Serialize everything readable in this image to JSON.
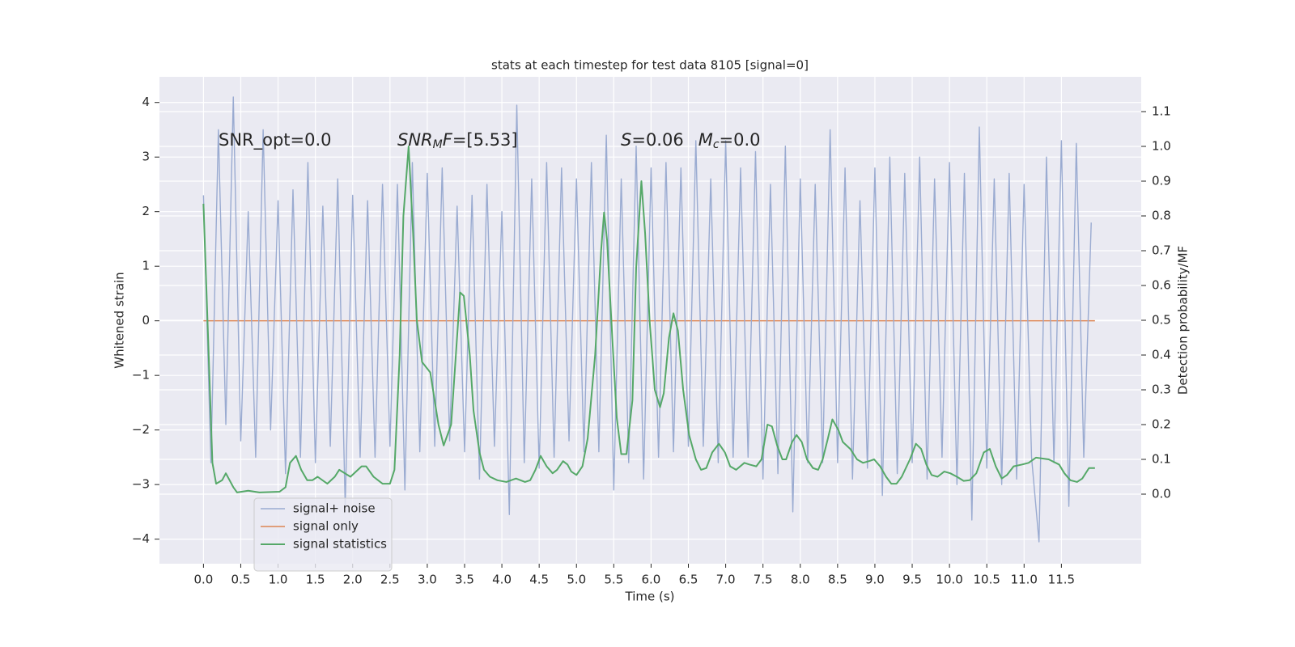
{
  "chart_data": {
    "type": "line",
    "title": "stats at each timestep for test data 8105 [signal=0]",
    "xlabel": "Time (s)",
    "ylabel": "Whitened strain",
    "y2label": "Detection probability/MF",
    "xlim": [
      -0.59,
      12.57
    ],
    "ylim": [
      -4.45,
      4.47
    ],
    "y2lim": [
      -0.2,
      1.2
    ],
    "xticks": [
      {
        "value": 0,
        "label": "0.0"
      },
      0.5,
      {
        "value": 1,
        "label": "1.0"
      },
      1.5,
      {
        "value": 2,
        "label": "2.0"
      },
      2.5,
      {
        "value": 3,
        "label": "3.0"
      },
      3.5,
      {
        "value": 4,
        "label": "4.0"
      },
      4.5,
      {
        "value": 5,
        "label": "5.0"
      },
      5.5,
      {
        "value": 6,
        "label": "6.0"
      },
      6.5,
      {
        "value": 7,
        "label": "7.0"
      },
      7.5,
      {
        "value": 8,
        "label": "8.0"
      },
      8.5,
      {
        "value": 9,
        "label": "9.0"
      },
      9.5,
      {
        "value": 10,
        "label": "10.0"
      },
      10.5,
      {
        "value": 11,
        "label": "11.0"
      },
      11.5
    ],
    "yticks": [
      {
        "value": -4,
        "label": "−4"
      },
      {
        "value": -3,
        "label": "−3"
      },
      {
        "value": -2,
        "label": "−2"
      },
      {
        "value": -1,
        "label": "−1"
      },
      0,
      1,
      2,
      3,
      4
    ],
    "y2ticks": [
      {
        "value": 0,
        "label": "0.0"
      },
      0.1,
      0.2,
      0.3,
      0.4,
      0.5,
      0.6,
      0.7,
      0.8,
      0.9,
      {
        "value": 1,
        "label": "1.0"
      },
      1.1
    ],
    "grid": true,
    "legend_loc": "lower left",
    "annotations": [
      [
        "SNR_opt=0.0"
      ],
      [
        "SNR",
        "M",
        "F",
        "=[5.53]"
      ],
      [
        "S",
        "=0.06",
        "M",
        "c",
        "=0.0"
      ]
    ],
    "series": [
      {
        "name": "signal+ noise",
        "color": "#9aabd1",
        "x": [
          0,
          0.1,
          0.2,
          0.3,
          0.4,
          0.5,
          0.6,
          0.7,
          0.8,
          0.9,
          1,
          1.1,
          1.2,
          1.3,
          1.4,
          1.5,
          1.6,
          1.7,
          1.8,
          1.9,
          2,
          2.1,
          2.2,
          2.3,
          2.4,
          2.5,
          2.6,
          2.7,
          2.8,
          2.9,
          3,
          3.1,
          3.2,
          3.3,
          3.4,
          3.5,
          3.6,
          3.7,
          3.8,
          3.9,
          4,
          4.1,
          4.2,
          4.3,
          4.4,
          4.5,
          4.6,
          4.7,
          4.8,
          4.9,
          5,
          5.1,
          5.2,
          5.3,
          5.4,
          5.5,
          5.6,
          5.7,
          5.8,
          5.9,
          6,
          6.1,
          6.2,
          6.3,
          6.4,
          6.5,
          6.6,
          6.7,
          6.8,
          6.9,
          7,
          7.1,
          7.2,
          7.3,
          7.4,
          7.5,
          7.6,
          7.7,
          7.8,
          7.9,
          8,
          8.1,
          8.2,
          8.3,
          8.4,
          8.5,
          8.6,
          8.7,
          8.8,
          8.9,
          9,
          9.1,
          9.2,
          9.3,
          9.4,
          9.5,
          9.6,
          9.7,
          9.8,
          9.9,
          10,
          10.1,
          10.2,
          10.3,
          10.4,
          10.5,
          10.6,
          10.7,
          10.8,
          10.9,
          11,
          11.1,
          11.2,
          11.3,
          11.4,
          11.5,
          11.6,
          11.7,
          11.8,
          11.9
        ],
        "values": [
          2.3,
          -2.6,
          3.5,
          -1.9,
          4.1,
          -2.2,
          2.0,
          -2.5,
          3.5,
          -2.0,
          2.2,
          -2.8,
          2.4,
          -2.5,
          2.9,
          -2.6,
          2.1,
          -2.3,
          2.6,
          -3.4,
          2.3,
          -2.5,
          2.2,
          -2.5,
          2.5,
          -2.3,
          2.5,
          -3.1,
          2.9,
          -2.4,
          2.7,
          -2.3,
          2.8,
          -2.2,
          2.1,
          -2.4,
          2.3,
          -2.9,
          2.5,
          -2.3,
          2.0,
          -3.55,
          3.95,
          -2.6,
          2.6,
          -2.7,
          2.9,
          -2.5,
          2.8,
          -2.2,
          2.6,
          -2.4,
          2.9,
          -2.4,
          3.4,
          -3.1,
          2.6,
          -2.6,
          3.2,
          -2.9,
          2.8,
          -2.5,
          2.9,
          -2.4,
          2.8,
          -2.3,
          3.3,
          -2.3,
          2.6,
          -2.6,
          3.3,
          -2.5,
          2.8,
          -2.5,
          3.1,
          -2.9,
          2.5,
          -2.8,
          3.2,
          -3.5,
          2.6,
          -2.6,
          2.5,
          -2.6,
          3.5,
          -2.6,
          2.8,
          -2.9,
          2.2,
          -2.7,
          2.8,
          -3.2,
          3.0,
          -2.8,
          2.7,
          -2.6,
          3.0,
          -2.9,
          2.6,
          -2.5,
          2.9,
          -3.0,
          2.7,
          -3.65,
          3.55,
          -2.7,
          2.6,
          -3.0,
          2.7,
          -2.9,
          2.5,
          -2.5,
          -4.05,
          3.0,
          -2.6,
          3.3,
          -3.4,
          3.25,
          -2.5,
          1.8
        ]
      },
      {
        "name": "signal only",
        "color": "#dd8452",
        "x": [
          0,
          11.95
        ],
        "values": [
          0,
          0
        ]
      },
      {
        "name": "signal statistics",
        "color": "#55a868",
        "axis": "y2",
        "x": [
          0,
          0.12,
          0.17,
          0.25,
          0.3,
          0.4,
          0.45,
          0.6,
          0.75,
          1.02,
          1.1,
          1.16,
          1.24,
          1.31,
          1.39,
          1.46,
          1.53,
          1.66,
          1.76,
          1.82,
          1.97,
          2.12,
          2.18,
          2.28,
          2.4,
          2.5,
          2.56,
          2.63,
          2.68,
          2.75,
          2.81,
          2.86,
          2.93,
          3.04,
          3.15,
          3.22,
          3.32,
          3.44,
          3.49,
          3.57,
          3.62,
          3.7,
          3.76,
          3.84,
          3.94,
          4.06,
          4.19,
          4.31,
          4.38,
          4.45,
          4.52,
          4.6,
          4.68,
          4.74,
          4.82,
          4.88,
          4.93,
          5.0,
          5.08,
          5.15,
          5.25,
          5.33,
          5.37,
          5.41,
          5.48,
          5.54,
          5.6,
          5.67,
          5.75,
          5.8,
          5.87,
          5.92,
          5.98,
          6.05,
          6.12,
          6.17,
          6.24,
          6.3,
          6.36,
          6.43,
          6.51,
          6.6,
          6.67,
          6.74,
          6.82,
          6.91,
          6.99,
          7.06,
          7.14,
          7.25,
          7.32,
          7.41,
          7.48,
          7.56,
          7.62,
          7.69,
          7.76,
          7.81,
          7.89,
          7.95,
          8.02,
          8.09,
          8.17,
          8.24,
          8.3,
          8.37,
          8.43,
          8.51,
          8.57,
          8.67,
          8.76,
          8.84,
          8.92,
          8.99,
          9.07,
          9.15,
          9.22,
          9.29,
          9.36,
          9.47,
          9.55,
          9.62,
          9.69,
          9.76,
          9.84,
          9.93,
          10.01,
          10.1,
          10.19,
          10.27,
          10.36,
          10.46,
          10.54,
          10.62,
          10.7,
          10.77,
          10.86,
          10.97,
          11.06,
          11.16,
          11.33,
          11.47,
          11.54,
          11.62,
          11.71,
          11.78,
          11.87,
          11.95
        ],
        "values": [
          0.835,
          0.09,
          0.03,
          0.04,
          0.06,
          0.02,
          0.005,
          0.01,
          0.005,
          0.007,
          0.02,
          0.09,
          0.11,
          0.07,
          0.04,
          0.04,
          0.05,
          0.03,
          0.05,
          0.07,
          0.05,
          0.08,
          0.08,
          0.05,
          0.03,
          0.03,
          0.07,
          0.4,
          0.8,
          1.0,
          0.75,
          0.5,
          0.38,
          0.35,
          0.2,
          0.14,
          0.2,
          0.58,
          0.57,
          0.4,
          0.24,
          0.12,
          0.07,
          0.05,
          0.04,
          0.035,
          0.045,
          0.035,
          0.04,
          0.07,
          0.11,
          0.08,
          0.06,
          0.07,
          0.095,
          0.085,
          0.065,
          0.055,
          0.08,
          0.16,
          0.4,
          0.7,
          0.81,
          0.73,
          0.45,
          0.22,
          0.115,
          0.115,
          0.27,
          0.65,
          0.9,
          0.75,
          0.5,
          0.3,
          0.25,
          0.29,
          0.45,
          0.52,
          0.47,
          0.3,
          0.17,
          0.1,
          0.07,
          0.075,
          0.12,
          0.145,
          0.12,
          0.08,
          0.07,
          0.09,
          0.085,
          0.08,
          0.1,
          0.2,
          0.195,
          0.14,
          0.1,
          0.1,
          0.15,
          0.17,
          0.15,
          0.1,
          0.075,
          0.07,
          0.1,
          0.16,
          0.215,
          0.185,
          0.15,
          0.13,
          0.1,
          0.09,
          0.095,
          0.1,
          0.08,
          0.05,
          0.03,
          0.03,
          0.05,
          0.1,
          0.145,
          0.13,
          0.085,
          0.055,
          0.05,
          0.065,
          0.06,
          0.05,
          0.038,
          0.04,
          0.06,
          0.12,
          0.13,
          0.08,
          0.045,
          0.055,
          0.08,
          0.085,
          0.09,
          0.105,
          0.1,
          0.085,
          0.06,
          0.04,
          0.035,
          0.045,
          0.075,
          0.075
        ]
      }
    ]
  }
}
